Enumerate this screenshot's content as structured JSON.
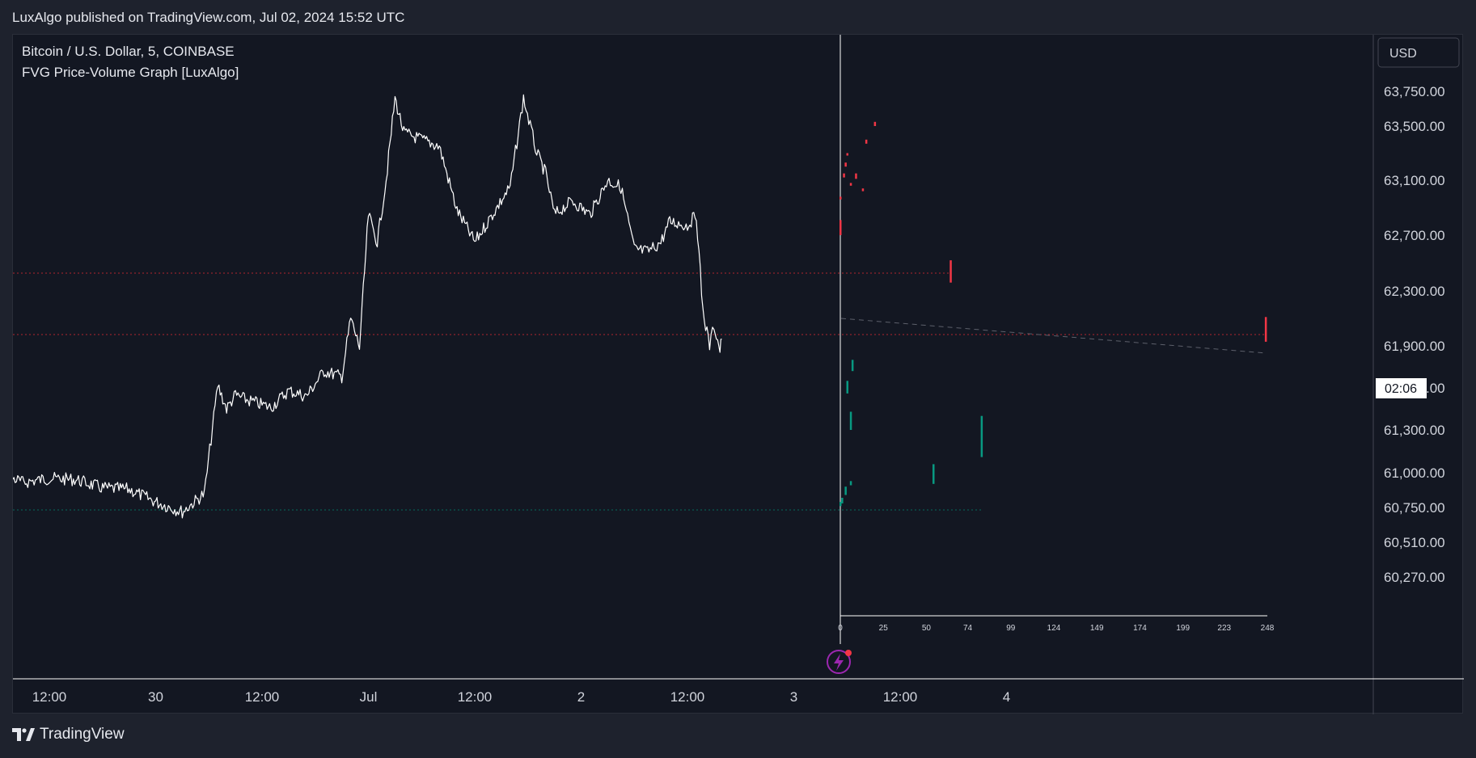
{
  "header": {
    "published": "LuxAlgo published on TradingView.com, Jul 02, 2024 15:52 UTC"
  },
  "legend": {
    "symbol": "Bitcoin / U.S. Dollar, 5, COINBASE",
    "indicator": "FVG Price-Volume Graph [LuxAlgo]"
  },
  "currency_button": "USD",
  "countdown": "02:06",
  "footer": {
    "brand": "TradingView"
  },
  "colors": {
    "background": "#131722",
    "candles": "#ffffff",
    "bearish_fvg": "#f23645",
    "bullish_fvg": "#089981",
    "axis_text": "#d1d4dc"
  },
  "chart_data": [
    {
      "type": "line",
      "description_source": "price series (white 5-minute candles)",
      "y_ticks": [
        63750,
        63500,
        63100,
        62700,
        62300,
        61900,
        61600,
        61300,
        61000,
        60750,
        60510,
        60270
      ],
      "y_tick_labels": [
        "63,750.00",
        "63,500.00",
        "63,100.00",
        "62,700.00",
        "62,300.00",
        "61,900.00",
        "61,600.00",
        "61,300.00",
        "61,000.00",
        "60,750.00",
        "60,510.00",
        "60,270.00"
      ],
      "ylim": [
        60270,
        63750
      ],
      "x_tick_labels": [
        "12:00",
        "30",
        "12:00",
        "Jul",
        "12:00",
        "2",
        "12:00",
        "3",
        "12:00",
        "4"
      ],
      "x_tick_times": [
        "2024-06-29 12:00",
        "2024-06-30 00:00",
        "2024-06-30 12:00",
        "2024-07-01 00:00",
        "2024-07-01 12:00",
        "2024-07-02 00:00",
        "2024-07-02 12:00",
        "2024-07-03 00:00",
        "2024-07-03 12:00",
        "2024-07-04 00:00"
      ],
      "price_path": {
        "t": [
          "2024-06-29 01:00",
          "2024-06-29 03:00",
          "2024-06-29 06:00",
          "2024-06-29 09:00",
          "2024-06-29 12:00",
          "2024-06-29 15:00",
          "2024-06-29 18:00",
          "2024-06-29 21:00",
          "2024-06-30 00:00",
          "2024-06-30 03:00",
          "2024-06-30 05:30",
          "2024-06-30 07:00",
          "2024-06-30 08:00",
          "2024-06-30 09:00",
          "2024-06-30 10:00",
          "2024-06-30 13:00",
          "2024-06-30 15:00",
          "2024-06-30 17:00",
          "2024-06-30 19:00",
          "2024-06-30 21:00",
          "2024-06-30 22:00",
          "2024-06-30 23:00",
          "2024-07-01 00:00",
          "2024-07-01 01:00",
          "2024-07-01 02:00",
          "2024-07-01 03:00",
          "2024-07-01 04:00",
          "2024-07-01 06:00",
          "2024-07-01 08:00",
          "2024-07-01 10:00",
          "2024-07-01 12:00",
          "2024-07-01 14:00",
          "2024-07-01 16:00",
          "2024-07-01 17:30",
          "2024-07-01 19:00",
          "2024-07-01 20:00",
          "2024-07-01 21:00",
          "2024-07-01 23:00",
          "2024-07-02 01:00",
          "2024-07-02 03:00",
          "2024-07-02 04:30",
          "2024-07-02 06:00",
          "2024-07-02 07:30",
          "2024-07-02 09:00",
          "2024-07-02 10:00",
          "2024-07-02 12:00",
          "2024-07-02 13:00",
          "2024-07-02 13:45",
          "2024-07-02 14:30",
          "2024-07-02 15:00",
          "2024-07-02 15:40",
          "2024-07-02 15:52"
        ],
        "price": [
          60980,
          60900,
          61010,
          60930,
          60960,
          60950,
          60890,
          60880,
          60790,
          60720,
          60850,
          61620,
          61450,
          61550,
          61520,
          61460,
          61580,
          61540,
          61720,
          61680,
          62100,
          61890,
          62850,
          62650,
          63100,
          63700,
          63450,
          63400,
          63350,
          62880,
          62650,
          62850,
          63050,
          63700,
          63300,
          63150,
          62850,
          62950,
          62850,
          63100,
          63050,
          62600,
          62580,
          62650,
          62800,
          62770,
          62850,
          62150,
          61900,
          62050,
          61870,
          61950
        ]
      }
    },
    {
      "type": "bar",
      "description_source": "FVG Price-Volume Graph bars (price-volume profile)",
      "x_ticks": [
        0,
        25,
        50,
        74,
        99,
        124,
        149,
        174,
        199,
        223,
        248
      ],
      "xlim": [
        0,
        248
      ],
      "series": [
        {
          "name": "Bearish",
          "color": "#f23645",
          "segments": [
            {
              "x": 0,
              "low": 62700,
              "high": 62810
            },
            {
              "x": 0,
              "low": 62960,
              "high": 62980
            },
            {
              "x": 2,
              "low": 63120,
              "high": 63150
            },
            {
              "x": 3,
              "low": 63200,
              "high": 63230
            },
            {
              "x": 4,
              "low": 63290,
              "high": 63300
            },
            {
              "x": 6,
              "low": 63060,
              "high": 63080
            },
            {
              "x": 9,
              "low": 63110,
              "high": 63150
            },
            {
              "x": 13,
              "low": 63020,
              "high": 63040
            },
            {
              "x": 15,
              "low": 63370,
              "high": 63400
            },
            {
              "x": 20,
              "low": 63500,
              "high": 63530
            },
            {
              "x": 64,
              "low": 62360,
              "high": 62520
            },
            {
              "x": 247,
              "low": 61930,
              "high": 62110
            }
          ]
        },
        {
          "name": "Bullish",
          "color": "#089981",
          "segments": [
            {
              "x": 0,
              "low": 60760,
              "high": 60790
            },
            {
              "x": 1,
              "low": 60780,
              "high": 60820
            },
            {
              "x": 3,
              "low": 60840,
              "high": 60900
            },
            {
              "x": 6,
              "low": 60910,
              "high": 60940
            },
            {
              "x": 4,
              "low": 61560,
              "high": 61650
            },
            {
              "x": 6,
              "low": 61300,
              "high": 61430
            },
            {
              "x": 7,
              "low": 61720,
              "high": 61800
            },
            {
              "x": 54,
              "low": 60920,
              "high": 61060
            },
            {
              "x": 82,
              "low": 61110,
              "high": 61400
            }
          ]
        }
      ]
    }
  ]
}
